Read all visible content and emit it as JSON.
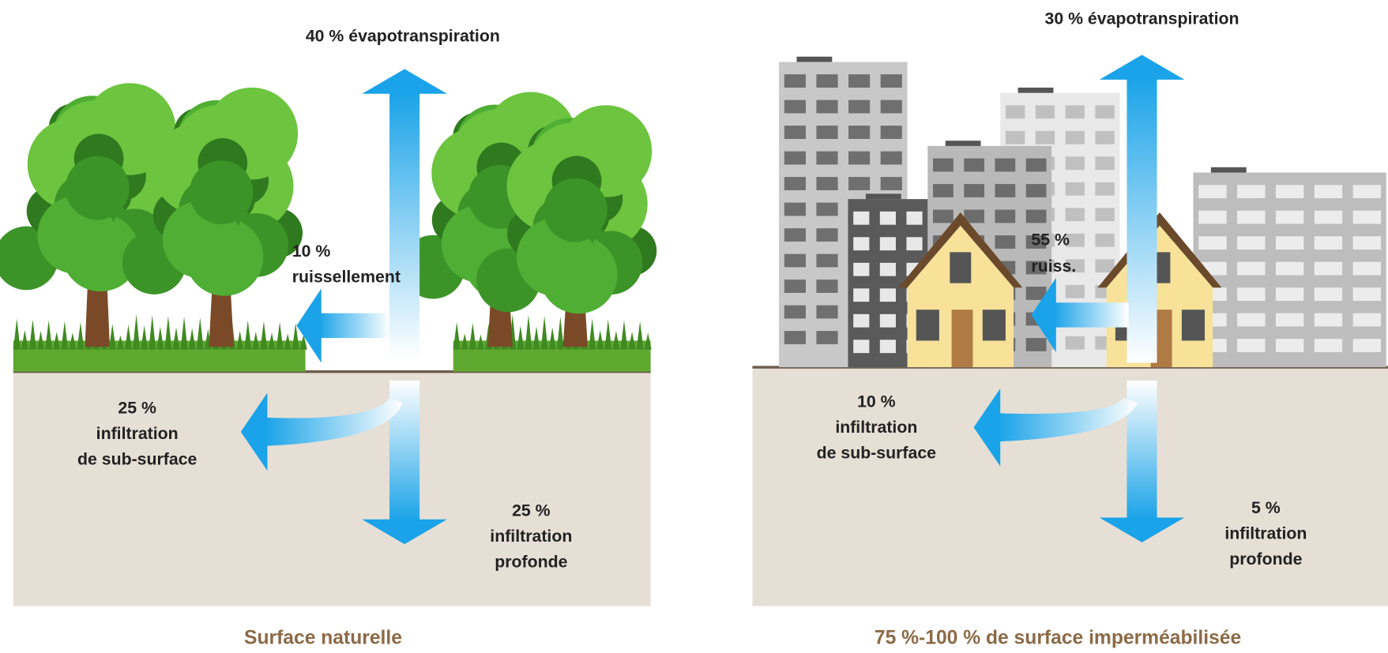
{
  "panels": [
    {
      "caption": "Surface naturelle",
      "evapotranspiration": [
        "40 % évapotranspiration"
      ],
      "runoff": [
        "10 %",
        "ruissellement"
      ],
      "subsurface_infiltration": [
        "25 %",
        "infiltration",
        "de sub-surface"
      ],
      "deep_infiltration": [
        "25 %",
        "infiltration",
        "profonde"
      ]
    },
    {
      "caption": "75 %-100 % de surface imperméabilisée",
      "evapotranspiration": [
        "30 % évapotranspiration"
      ],
      "runoff": [
        "55 %",
        "ruiss."
      ],
      "subsurface_infiltration": [
        "10 %",
        "infiltration",
        "de sub-surface"
      ],
      "deep_infiltration": [
        "5 %",
        "infiltration",
        "profonde"
      ]
    }
  ]
}
